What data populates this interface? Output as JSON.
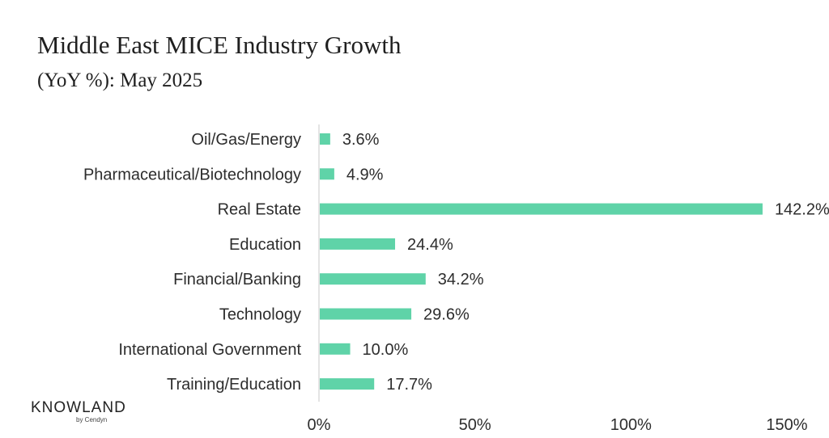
{
  "title": "Middle East MICE Industry Growth",
  "subtitle": "(YoY %): May 2025",
  "logo": {
    "word": "KNOWLAND",
    "by": "by Cendyn"
  },
  "colors": {
    "bar": "#5fd3a8",
    "axis": "#c8c8c8",
    "text": "#2d2d2d"
  },
  "chart_data": {
    "type": "bar",
    "orientation": "horizontal",
    "categories": [
      "Oil/Gas/Energy",
      "Pharmaceutical/Biotechnology",
      "Real Estate",
      "Education",
      "Financial/Banking",
      "Technology",
      "International Government",
      "Training/Education"
    ],
    "values": [
      3.6,
      4.9,
      142.2,
      24.4,
      34.2,
      29.6,
      10.0,
      17.7
    ],
    "value_labels": [
      "3.6%",
      "4.9%",
      "142.2%",
      "24.4%",
      "34.2%",
      "29.6%",
      "10.0%",
      "17.7%"
    ],
    "xlim": [
      0,
      150
    ],
    "xticks": [
      0,
      50,
      100,
      150
    ],
    "xtick_labels": [
      "0%",
      "50%",
      "100%",
      "150%"
    ],
    "grid": false
  }
}
